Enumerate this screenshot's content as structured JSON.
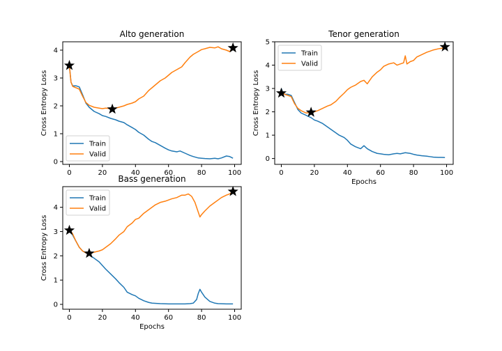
{
  "colors": {
    "train": "#1f77b4",
    "valid": "#ff7f0e",
    "marker": "#000000"
  },
  "chart_data": [
    {
      "type": "line",
      "title": "Alto generation",
      "xlabel": "",
      "ylabel": "Cross Entropy Loss",
      "xlim": [
        -4,
        104
      ],
      "ylim": [
        -0.1,
        4.3
      ],
      "xticks": [
        0,
        20,
        40,
        60,
        80,
        100
      ],
      "yticks": [
        0,
        1,
        2,
        3,
        4
      ],
      "legend": "lower-left",
      "series": [
        {
          "name": "Train",
          "color_key": "train",
          "x": [
            0,
            1,
            2,
            4,
            6,
            8,
            10,
            12,
            15,
            18,
            20,
            22,
            25,
            28,
            30,
            33,
            35,
            38,
            40,
            42,
            45,
            48,
            50,
            52,
            55,
            58,
            60,
            62,
            65,
            67,
            70,
            73,
            75,
            78,
            80,
            82,
            85,
            88,
            90,
            92,
            95,
            97,
            99
          ],
          "y": [
            3.45,
            2.85,
            2.72,
            2.72,
            2.68,
            2.4,
            2.1,
            1.95,
            1.8,
            1.72,
            1.65,
            1.62,
            1.55,
            1.5,
            1.45,
            1.4,
            1.32,
            1.22,
            1.15,
            1.05,
            0.95,
            0.8,
            0.72,
            0.68,
            0.58,
            0.48,
            0.42,
            0.38,
            0.35,
            0.38,
            0.3,
            0.22,
            0.18,
            0.13,
            0.12,
            0.11,
            0.1,
            0.12,
            0.1,
            0.13,
            0.2,
            0.18,
            0.12
          ]
        },
        {
          "name": "Valid",
          "color_key": "valid",
          "x": [
            0,
            1,
            2,
            4,
            6,
            8,
            10,
            12,
            15,
            18,
            20,
            22,
            25,
            28,
            30,
            33,
            35,
            38,
            40,
            42,
            45,
            48,
            50,
            52,
            55,
            58,
            60,
            62,
            65,
            68,
            70,
            73,
            75,
            78,
            80,
            82,
            85,
            88,
            90,
            92,
            95,
            97,
            99
          ],
          "y": [
            3.45,
            2.85,
            2.7,
            2.65,
            2.6,
            2.35,
            2.12,
            2.02,
            1.95,
            1.92,
            1.9,
            1.92,
            1.9,
            1.92,
            1.95,
            2.0,
            2.05,
            2.1,
            2.15,
            2.25,
            2.35,
            2.55,
            2.65,
            2.75,
            2.9,
            3.0,
            3.1,
            3.2,
            3.3,
            3.4,
            3.55,
            3.75,
            3.85,
            3.95,
            4.02,
            4.05,
            4.1,
            4.08,
            4.12,
            4.05,
            4.0,
            3.95,
            4.08
          ]
        }
      ],
      "markers": [
        {
          "x": 0,
          "y": 3.45
        },
        {
          "x": 26,
          "y": 1.88
        },
        {
          "x": 99,
          "y": 4.08
        }
      ]
    },
    {
      "type": "line",
      "title": "Tenor generation",
      "xlabel": "Epochs",
      "ylabel": "Cross Entropy Loss",
      "xlim": [
        -4,
        104
      ],
      "ylim": [
        -0.25,
        5.0
      ],
      "xticks": [
        0,
        20,
        40,
        60,
        80,
        100
      ],
      "yticks": [
        0,
        1,
        2,
        3,
        4,
        5
      ],
      "legend": "upper-left",
      "series": [
        {
          "name": "Train",
          "color_key": "train",
          "x": [
            0,
            1,
            2,
            4,
            6,
            8,
            10,
            12,
            15,
            18,
            20,
            22,
            25,
            28,
            30,
            33,
            35,
            38,
            40,
            42,
            45,
            48,
            50,
            52,
            55,
            58,
            60,
            62,
            65,
            68,
            70,
            72,
            75,
            78,
            80,
            82,
            85,
            88,
            90,
            92,
            95,
            97,
            99
          ],
          "y": [
            3.0,
            2.8,
            2.75,
            2.75,
            2.7,
            2.4,
            2.1,
            1.95,
            1.85,
            1.75,
            1.65,
            1.6,
            1.5,
            1.35,
            1.25,
            1.1,
            1.0,
            0.9,
            0.78,
            0.62,
            0.5,
            0.42,
            0.55,
            0.42,
            0.3,
            0.22,
            0.2,
            0.18,
            0.16,
            0.2,
            0.22,
            0.2,
            0.25,
            0.22,
            0.18,
            0.15,
            0.12,
            0.1,
            0.08,
            0.06,
            0.05,
            0.05,
            0.04
          ]
        },
        {
          "name": "Valid",
          "color_key": "valid",
          "x": [
            0,
            1,
            2,
            4,
            6,
            8,
            10,
            12,
            15,
            18,
            20,
            22,
            25,
            28,
            30,
            33,
            35,
            38,
            40,
            42,
            45,
            48,
            50,
            52,
            55,
            58,
            60,
            62,
            65,
            68,
            70,
            72,
            74,
            75,
            76,
            78,
            80,
            82,
            85,
            88,
            90,
            92,
            95,
            97,
            99
          ],
          "y": [
            2.8,
            2.85,
            2.75,
            2.7,
            2.65,
            2.35,
            2.15,
            2.05,
            1.95,
            1.98,
            2.0,
            2.05,
            2.15,
            2.25,
            2.3,
            2.45,
            2.6,
            2.8,
            2.95,
            3.05,
            3.15,
            3.3,
            3.35,
            3.2,
            3.5,
            3.7,
            3.8,
            3.95,
            4.05,
            4.1,
            4.0,
            4.05,
            4.1,
            4.4,
            4.05,
            4.15,
            4.2,
            4.35,
            4.45,
            4.55,
            4.6,
            4.65,
            4.7,
            4.72,
            4.78
          ]
        }
      ],
      "markers": [
        {
          "x": 0,
          "y": 2.8
        },
        {
          "x": 18,
          "y": 1.98
        },
        {
          "x": 99,
          "y": 4.78
        }
      ]
    },
    {
      "type": "line",
      "title": "Bass generation",
      "xlabel": "Epochs",
      "ylabel": "Cross Entropy Loss",
      "xlim": [
        -4,
        104
      ],
      "ylim": [
        -0.2,
        4.85
      ],
      "xticks": [
        0,
        20,
        40,
        60,
        80,
        100
      ],
      "yticks": [
        0,
        1,
        2,
        3,
        4
      ],
      "legend": "upper-left",
      "series": [
        {
          "name": "Train",
          "color_key": "train",
          "x": [
            0,
            1,
            2,
            4,
            6,
            8,
            10,
            12,
            15,
            18,
            20,
            22,
            25,
            28,
            30,
            33,
            35,
            38,
            40,
            42,
            45,
            48,
            50,
            55,
            60,
            65,
            70,
            73,
            75,
            77,
            78,
            79,
            80,
            82,
            85,
            88,
            90,
            95,
            99
          ],
          "y": [
            3.05,
            2.95,
            2.85,
            2.6,
            2.35,
            2.2,
            2.12,
            2.05,
            1.9,
            1.75,
            1.6,
            1.45,
            1.25,
            1.05,
            0.9,
            0.7,
            0.5,
            0.4,
            0.35,
            0.25,
            0.15,
            0.08,
            0.05,
            0.03,
            0.02,
            0.02,
            0.02,
            0.03,
            0.05,
            0.2,
            0.45,
            0.62,
            0.5,
            0.3,
            0.12,
            0.05,
            0.03,
            0.02,
            0.02
          ]
        },
        {
          "name": "Valid",
          "color_key": "valid",
          "x": [
            0,
            1,
            2,
            4,
            6,
            8,
            10,
            12,
            15,
            18,
            20,
            22,
            25,
            28,
            30,
            33,
            35,
            38,
            40,
            42,
            45,
            48,
            50,
            52,
            55,
            58,
            60,
            62,
            65,
            68,
            70,
            72,
            74,
            76,
            78,
            79,
            80,
            82,
            85,
            88,
            90,
            92,
            95,
            97,
            99
          ],
          "y": [
            3.05,
            3.0,
            2.9,
            2.6,
            2.35,
            2.2,
            2.12,
            2.08,
            2.15,
            2.2,
            2.25,
            2.35,
            2.5,
            2.7,
            2.85,
            3.0,
            3.2,
            3.35,
            3.5,
            3.55,
            3.75,
            3.9,
            4.0,
            4.1,
            4.2,
            4.25,
            4.3,
            4.35,
            4.4,
            4.5,
            4.5,
            4.55,
            4.45,
            4.2,
            3.8,
            3.6,
            3.7,
            3.85,
            4.05,
            4.2,
            4.3,
            4.4,
            4.5,
            4.55,
            4.65
          ]
        }
      ],
      "markers": [
        {
          "x": 0,
          "y": 3.05
        },
        {
          "x": 12,
          "y": 2.1
        },
        {
          "x": 99,
          "y": 4.65
        }
      ]
    }
  ]
}
